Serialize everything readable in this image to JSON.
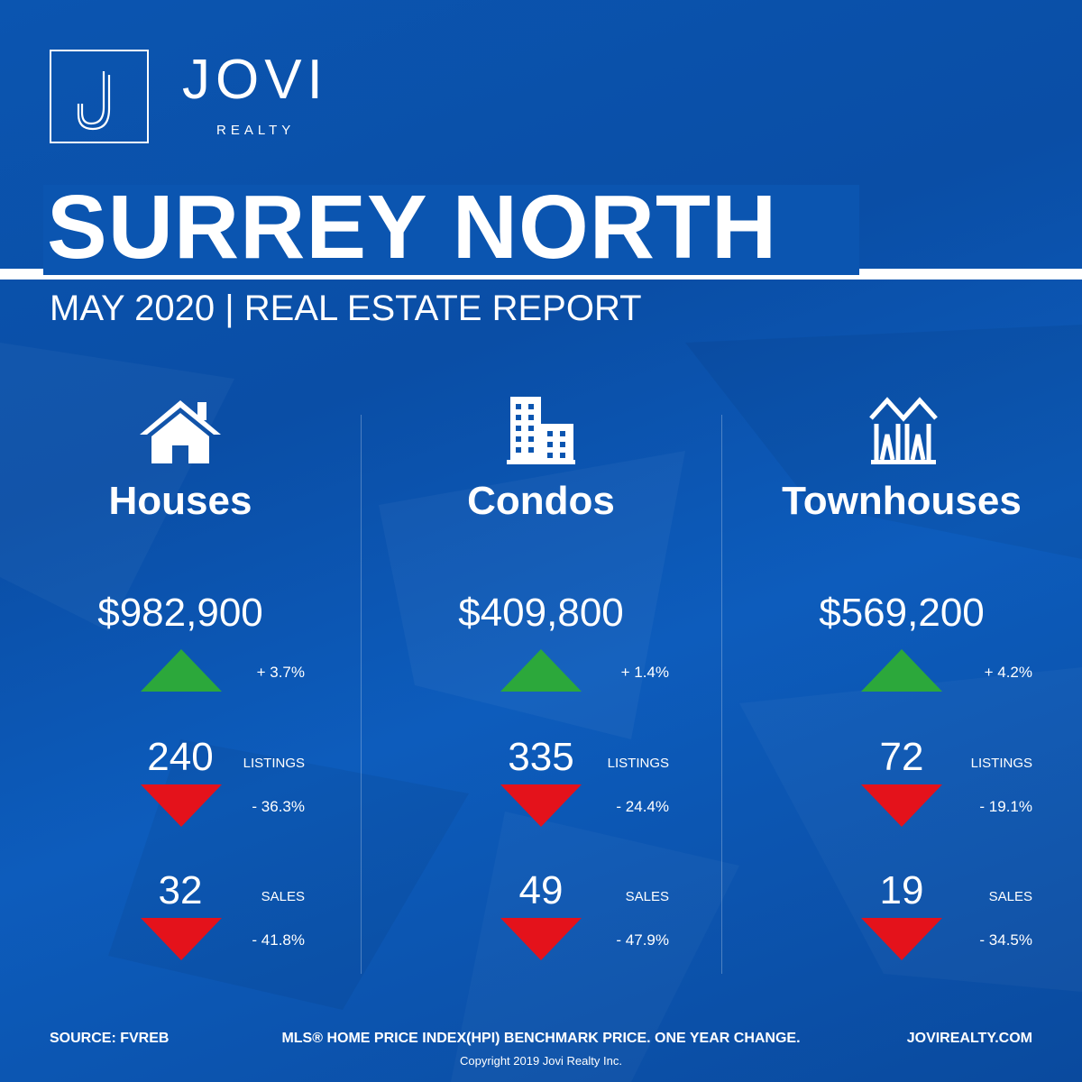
{
  "brand": {
    "name": "JOVI",
    "sub": "REALTY",
    "monogram": "J"
  },
  "title": "SURREY NORTH",
  "subtitle": "MAY 2020 | REAL ESTATE REPORT",
  "colors": {
    "background": "#0b55b0",
    "up": "#2ca83b",
    "down": "#e4121b",
    "text": "#ffffff"
  },
  "columns": [
    {
      "icon": "house-icon",
      "category": "Houses",
      "price": "$982,900",
      "price_change": "+ 3.7%",
      "price_trend": "up",
      "listings": "240",
      "listings_label": "LISTINGS",
      "listings_change": "- 36.3%",
      "listings_trend": "down",
      "sales": "32",
      "sales_label": "SALES",
      "sales_change": "- 41.8%",
      "sales_trend": "down"
    },
    {
      "icon": "condo-building-icon",
      "category": "Condos",
      "price": "$409,800",
      "price_change": "+ 1.4%",
      "price_trend": "up",
      "listings": "335",
      "listings_label": "LISTINGS",
      "listings_change": "- 24.4%",
      "listings_trend": "down",
      "sales": "49",
      "sales_label": "SALES",
      "sales_change": "- 47.9%",
      "sales_trend": "down"
    },
    {
      "icon": "townhouse-icon",
      "category": "Townhouses",
      "price": "$569,200",
      "price_change": "+ 4.2%",
      "price_trend": "up",
      "listings": "72",
      "listings_label": "LISTINGS",
      "listings_change": "- 19.1%",
      "listings_trend": "down",
      "sales": "19",
      "sales_label": "SALES",
      "sales_change": "- 34.5%",
      "sales_trend": "down"
    }
  ],
  "footer": {
    "source": "SOURCE:  FVREB",
    "note": "MLS® HOME PRICE INDEX(HPI) BENCHMARK PRICE. ONE YEAR CHANGE.",
    "website": "JOVIREALTY.COM",
    "copyright": "Copyright 2019 Jovi Realty Inc."
  }
}
